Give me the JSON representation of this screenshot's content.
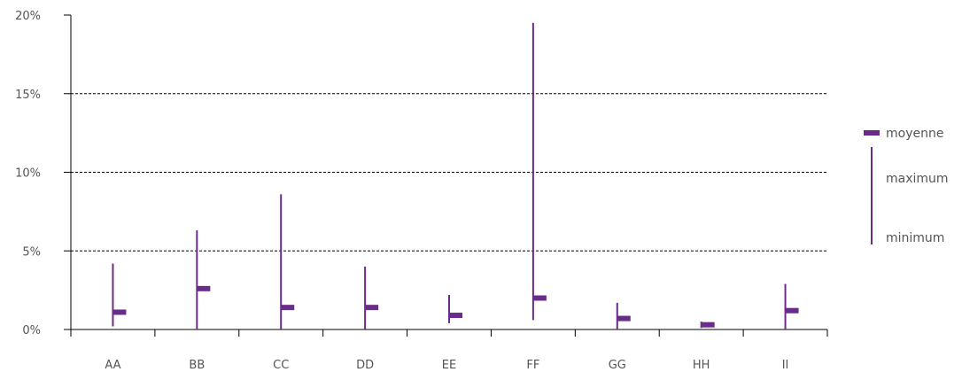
{
  "chart_data": {
    "type": "range",
    "categories": [
      "AA",
      "BB",
      "CC",
      "DD",
      "EE",
      "FF",
      "GG",
      "HH",
      "II"
    ],
    "series": [
      {
        "name": "maximum",
        "values": [
          4.2,
          6.3,
          8.6,
          4.0,
          2.2,
          19.5,
          1.7,
          0.5,
          2.9
        ]
      },
      {
        "name": "minimum",
        "values": [
          0.2,
          0.0,
          0.0,
          0.0,
          0.4,
          0.6,
          0.0,
          0.1,
          0.0
        ]
      },
      {
        "name": "moyenne",
        "values": [
          1.1,
          2.6,
          1.4,
          1.4,
          0.9,
          2.0,
          0.7,
          0.3,
          1.2
        ]
      }
    ],
    "y_ticks": [
      "0%",
      "5%",
      "10%",
      "15%",
      "20%"
    ],
    "ylim": [
      0,
      20
    ],
    "grid": "horizontal dashed at 5, 10, 15",
    "legend_position": "right",
    "colors": {
      "series": "#6a2c8a",
      "axis": "#000000",
      "grid": "#000000",
      "text": "#555555"
    }
  },
  "legend": {
    "mean_label": "moyenne",
    "max_label": "maximum",
    "min_label": "minimum"
  }
}
